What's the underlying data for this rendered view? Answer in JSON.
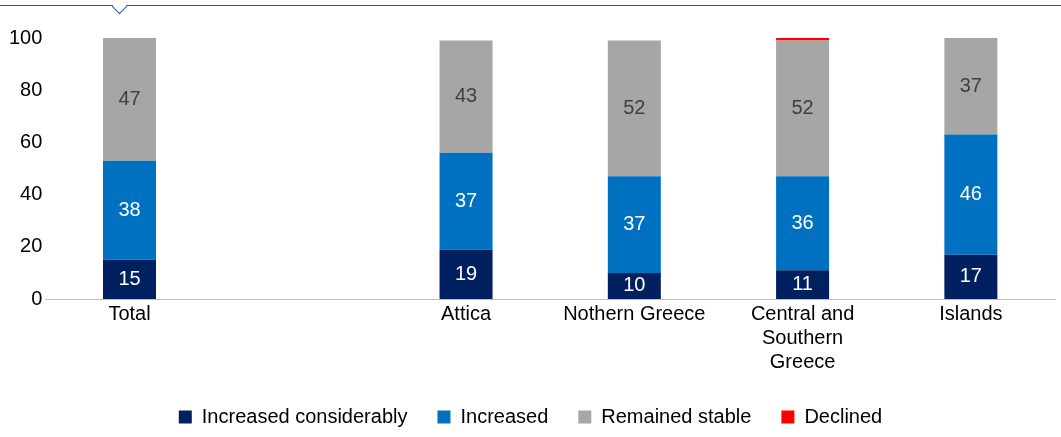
{
  "chart_data": {
    "type": "bar",
    "stacked": true,
    "categories": [
      "Total",
      null,
      "Attica",
      "Nothern Greece",
      "Central and Southern Greece",
      "Islands"
    ],
    "series": [
      {
        "name": "Increased considerably",
        "color": "#002060",
        "values": [
          15,
          null,
          19,
          10,
          11,
          17
        ],
        "value_labels": [
          "15",
          null,
          "19",
          "10",
          "11",
          "17"
        ]
      },
      {
        "name": "Increased",
        "color": "#0070c0",
        "values": [
          38,
          null,
          37,
          37,
          36,
          46
        ],
        "value_labels": [
          "38",
          null,
          "37",
          "37",
          "36",
          "46"
        ]
      },
      {
        "name": "Remained stable",
        "color": "#a6a6a6",
        "values": [
          47,
          null,
          43,
          52,
          52,
          37
        ],
        "value_labels": [
          "47",
          null,
          "43",
          "52",
          "52",
          "37"
        ]
      },
      {
        "name": "Declined",
        "color": "#ff0000",
        "values": [
          0,
          null,
          0,
          0,
          1,
          0
        ]
      }
    ],
    "ylim": [
      0,
      100
    ],
    "yticks": [
      0,
      20,
      40,
      60,
      80,
      100
    ],
    "grid": false,
    "legend": "bottom"
  }
}
